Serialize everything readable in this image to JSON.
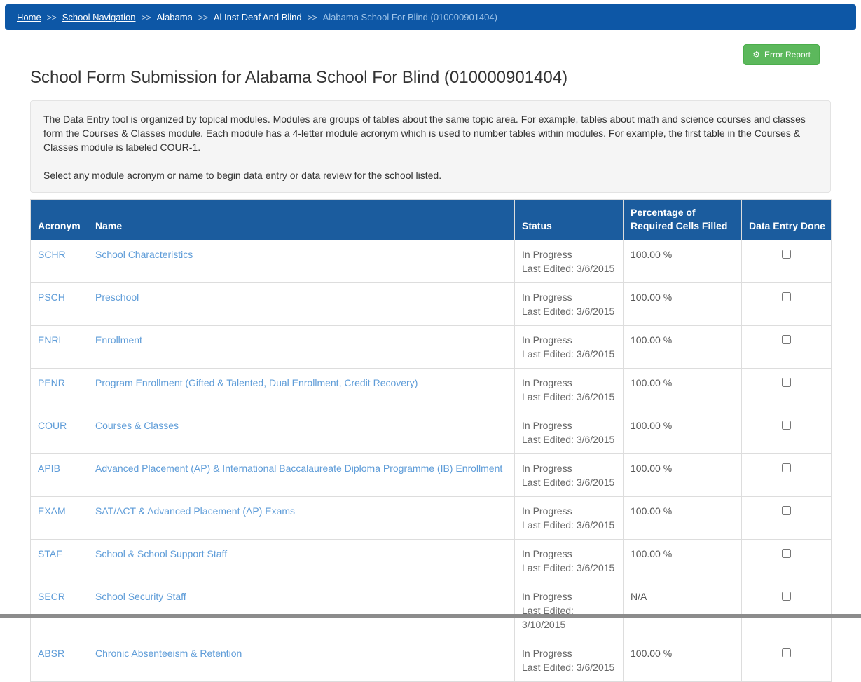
{
  "breadcrumb": {
    "separator": ">>",
    "items": [
      {
        "label": "Home",
        "type": "link"
      },
      {
        "label": "School Navigation",
        "type": "link"
      },
      {
        "label": "Alabama",
        "type": "text"
      },
      {
        "label": "Al Inst Deaf And Blind",
        "type": "text"
      },
      {
        "label": "Alabama School For Blind (010000901404)",
        "type": "current"
      }
    ]
  },
  "toolbar": {
    "error_report_label": "Error Report",
    "error_report_icon": "⚙"
  },
  "page": {
    "title": "School Form Submission for Alabama School For Blind (010000901404)"
  },
  "intro": {
    "paragraph1": "The Data Entry tool is organized by topical modules. Modules are groups of tables about the same topic area. For example, tables about math and science courses and classes form the Courses & Classes module. Each module has a 4-letter module acronym which is used to number tables within modules. For example, the first table in the Courses & Classes module is labeled COUR-1.",
    "paragraph2": "Select any module acronym or name to begin data entry or data review for the school listed."
  },
  "table": {
    "headers": {
      "acronym": "Acronym",
      "name": "Name",
      "status": "Status",
      "percentage": "Percentage of Required Cells Filled",
      "done": "Data Entry Done"
    },
    "rows": [
      {
        "acronym": "SCHR",
        "name": "School Characteristics",
        "status": "In Progress",
        "last_edited": "Last Edited: 3/6/2015",
        "percentage": "100.00 %",
        "done": false
      },
      {
        "acronym": "PSCH",
        "name": "Preschool",
        "status": "In Progress",
        "last_edited": "Last Edited: 3/6/2015",
        "percentage": "100.00 %",
        "done": false
      },
      {
        "acronym": "ENRL",
        "name": "Enrollment",
        "status": "In Progress",
        "last_edited": "Last Edited: 3/6/2015",
        "percentage": "100.00 %",
        "done": false
      },
      {
        "acronym": "PENR",
        "name": "Program Enrollment (Gifted & Talented, Dual Enrollment, Credit Recovery)",
        "status": "In Progress",
        "last_edited": "Last Edited: 3/6/2015",
        "percentage": "100.00 %",
        "done": false
      },
      {
        "acronym": "COUR",
        "name": "Courses & Classes",
        "status": "In Progress",
        "last_edited": "Last Edited: 3/6/2015",
        "percentage": "100.00 %",
        "done": false
      },
      {
        "acronym": "APIB",
        "name": "Advanced Placement (AP) & International Baccalaureate Diploma Programme (IB) Enrollment",
        "status": "In Progress",
        "last_edited": "Last Edited: 3/6/2015",
        "percentage": "100.00 %",
        "done": false
      },
      {
        "acronym": "EXAM",
        "name": "SAT/ACT & Advanced Placement (AP) Exams",
        "status": "In Progress",
        "last_edited": "Last Edited: 3/6/2015",
        "percentage": "100.00 %",
        "done": false
      },
      {
        "acronym": "STAF",
        "name": "School & School Support Staff",
        "status": "In Progress",
        "last_edited": "Last Edited: 3/6/2015",
        "percentage": "100.00 %",
        "done": false
      },
      {
        "acronym": "SECR",
        "name": "School Security Staff",
        "status": "In Progress",
        "last_edited": "Last Edited: 3/10/2015",
        "percentage": "N/A",
        "done": false
      },
      {
        "acronym": "ABSR",
        "name": "Chronic Absenteeism & Retention",
        "status": "In Progress",
        "last_edited": "Last Edited: 3/6/2015",
        "percentage": "100.00 %",
        "done": false
      }
    ]
  },
  "colors": {
    "navbar_blue": "#0d57a6",
    "table_header_blue": "#1b5c9e",
    "link_blue": "#5e9cd8",
    "breadcrumb_current": "#9dc3e8",
    "button_green": "#5cb85c",
    "intro_background": "#f5f5f5",
    "status_gray": "#666666"
  }
}
